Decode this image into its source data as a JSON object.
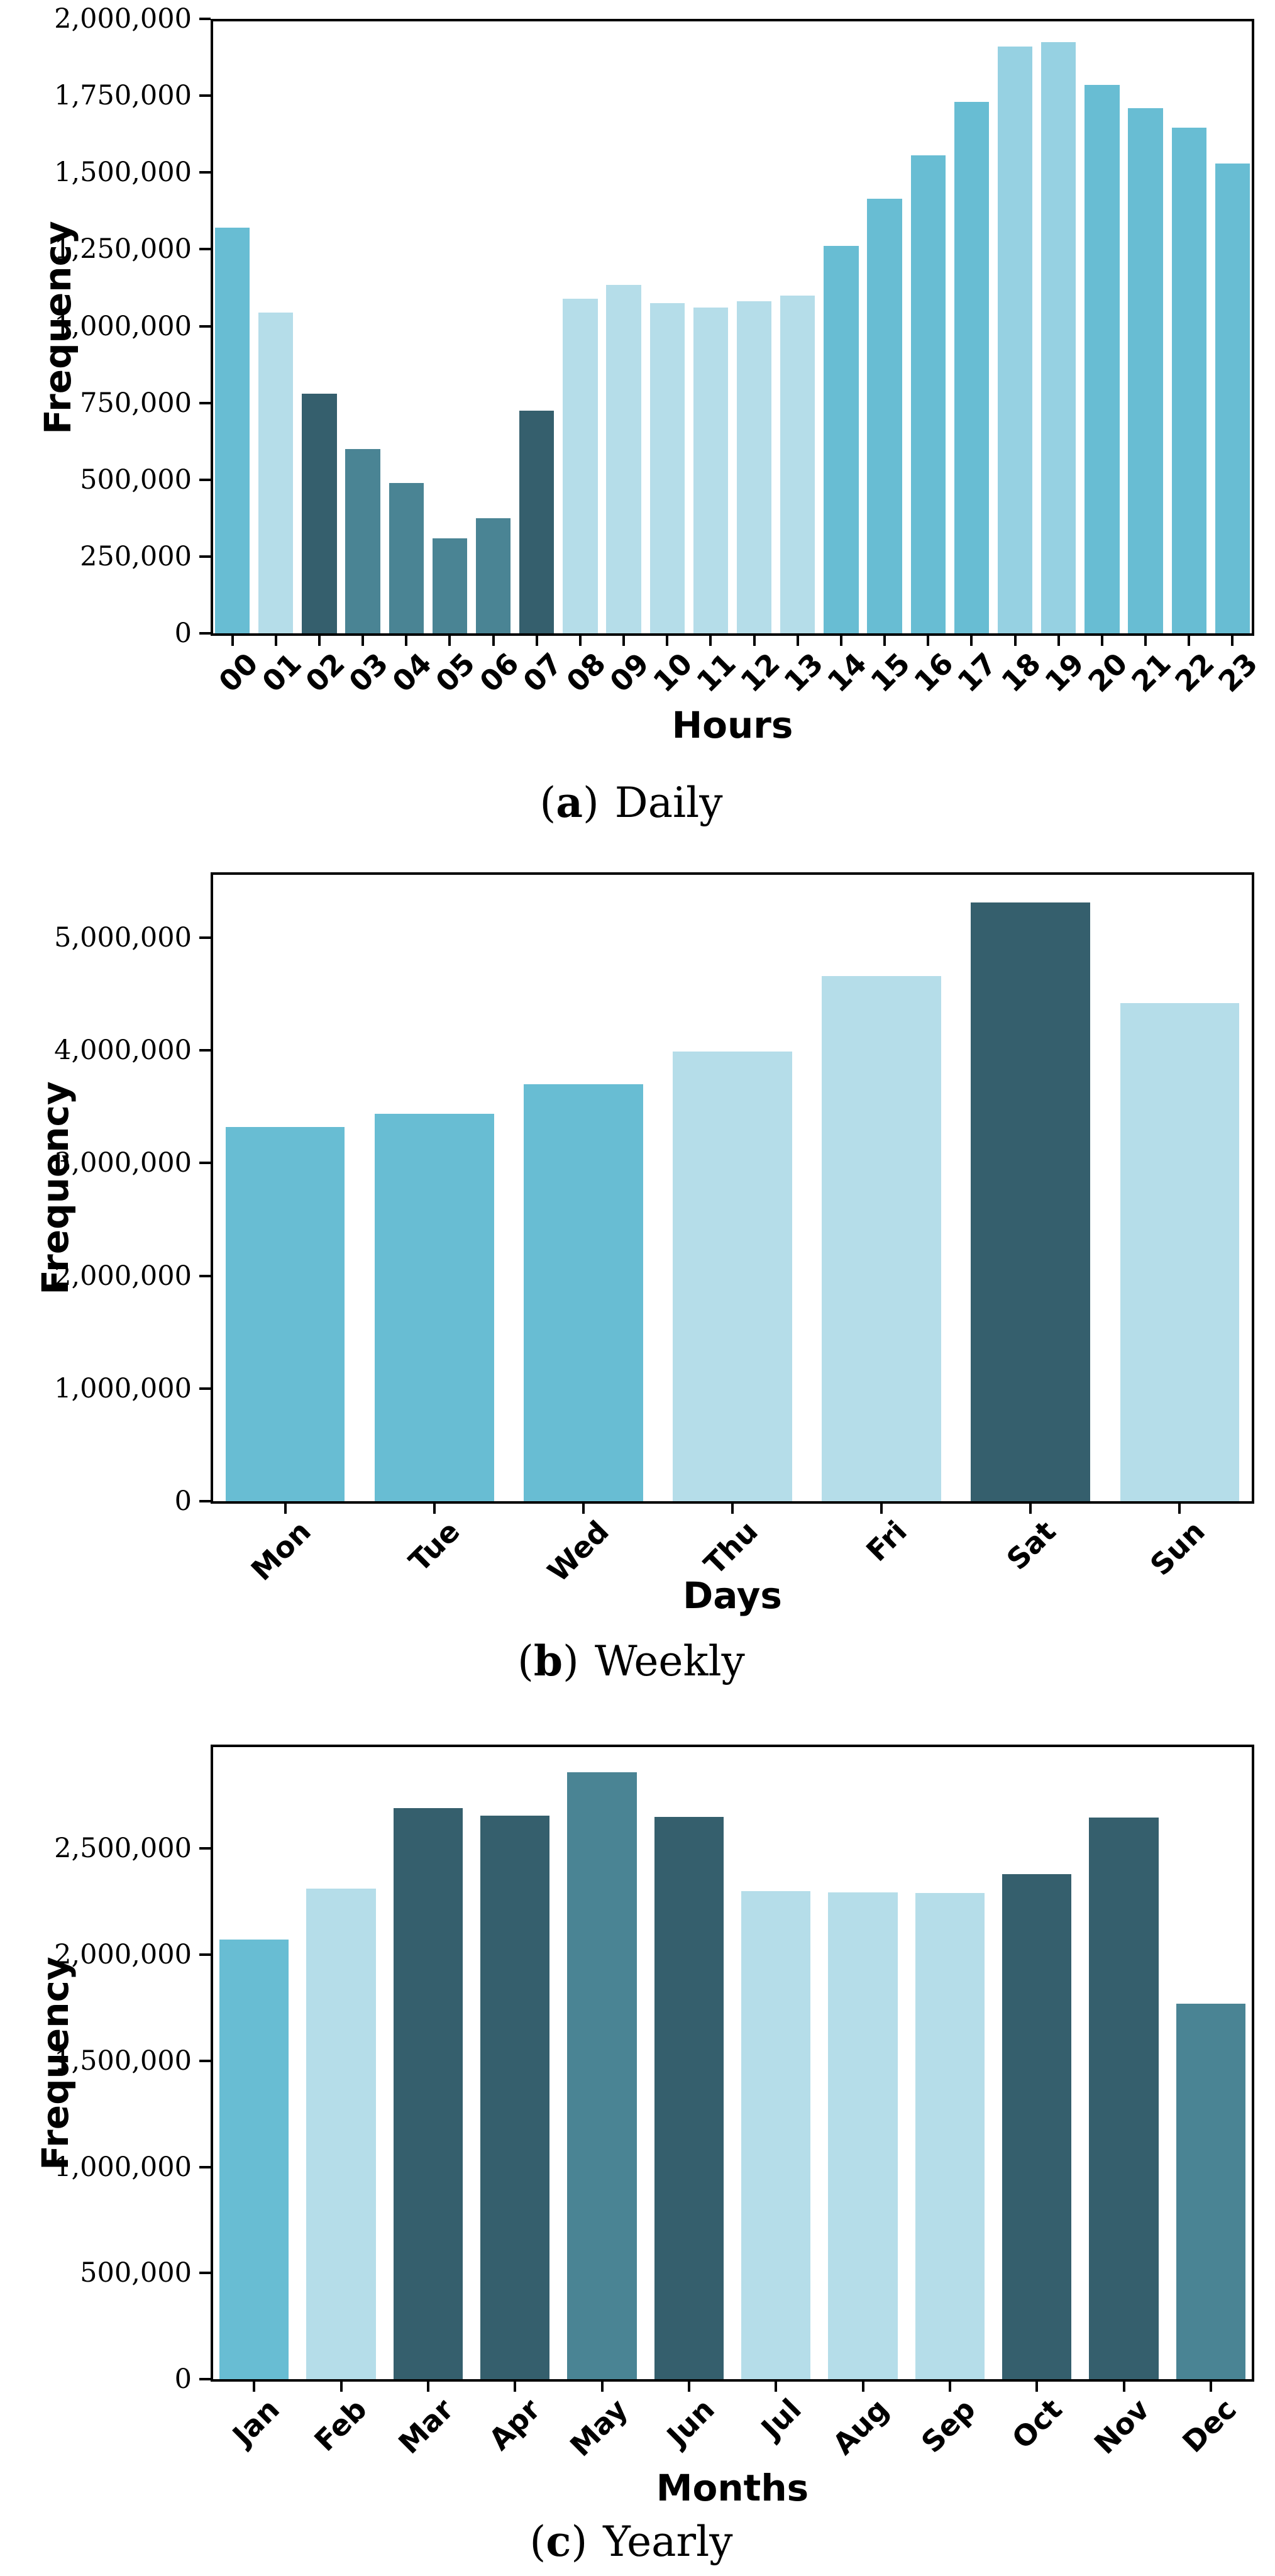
{
  "page": {
    "background": "#ffffff"
  },
  "palette": {
    "medium_teal": "#68bdd3",
    "light_blue": "#b5dde9",
    "pale_mid_blue": "#96d1e2",
    "medium_dark_teal": "#4a8494",
    "dark_slate": "#355f6d",
    "axis_color": "#000000"
  },
  "chart_data": [
    {
      "type": "bar",
      "caption": {
        "open": "(",
        "letter": "a",
        "close": ")",
        "title": "Daily"
      },
      "xlabel": "Hours",
      "ylabel": "Frequency",
      "categories": [
        "00",
        "01",
        "02",
        "03",
        "04",
        "05",
        "06",
        "07",
        "08",
        "09",
        "10",
        "11",
        "12",
        "13",
        "14",
        "15",
        "16",
        "17",
        "18",
        "19",
        "20",
        "21",
        "22",
        "23"
      ],
      "values": [
        1320000,
        1045000,
        780000,
        600000,
        490000,
        310000,
        375000,
        725000,
        1090000,
        1135000,
        1075000,
        1060000,
        1080000,
        1100000,
        1260000,
        1415000,
        1555000,
        1730000,
        1910000,
        1925000,
        1785000,
        1710000,
        1645000,
        1530000
      ],
      "bar_colors": [
        "#68bdd3",
        "#b5dde9",
        "#355f6d",
        "#4a8494",
        "#4a8494",
        "#4a8494",
        "#4a8494",
        "#355f6d",
        "#b5dde9",
        "#b5dde9",
        "#b5dde9",
        "#b5dde9",
        "#b5dde9",
        "#b5dde9",
        "#68bdd3",
        "#68bdd3",
        "#68bdd3",
        "#68bdd3",
        "#96d1e2",
        "#96d1e2",
        "#68bdd3",
        "#68bdd3",
        "#68bdd3",
        "#68bdd3"
      ],
      "ylim": [
        0,
        2000000
      ],
      "grid": false,
      "legend": "none",
      "yticks": {
        "values": [
          0,
          250000,
          500000,
          750000,
          1000000,
          1250000,
          1500000,
          1750000,
          2000000
        ],
        "labels": [
          "0",
          "250,000",
          "500,000",
          "750,000",
          "1,000,000",
          "1,250,000",
          "1,500,000",
          "1,750,000",
          "2,000,000"
        ]
      }
    },
    {
      "type": "bar",
      "caption": {
        "open": "(",
        "letter": "b",
        "close": ")",
        "title": "Weekly"
      },
      "xlabel": "Days",
      "ylabel": "Frequency",
      "categories": [
        "Mon",
        "Tue",
        "Wed",
        "Thu",
        "Fri",
        "Sat",
        "Sun"
      ],
      "values": [
        3320000,
        3440000,
        3700000,
        3990000,
        4660000,
        5310000,
        4420000
      ],
      "bar_colors": [
        "#68bdd3",
        "#68bdd3",
        "#68bdd3",
        "#b5dde9",
        "#b5dde9",
        "#355f6d",
        "#b5dde9"
      ],
      "ylim": [
        0,
        5580000
      ],
      "grid": false,
      "legend": "none",
      "yticks": {
        "values": [
          0,
          1000000,
          2000000,
          3000000,
          4000000,
          5000000
        ],
        "labels": [
          "0",
          "1,000,000",
          "2,000,000",
          "3,000,000",
          "4,000,000",
          "5,000,000"
        ]
      }
    },
    {
      "type": "bar",
      "caption": {
        "open": "(",
        "letter": "c",
        "close": ")",
        "title": "Yearly"
      },
      "xlabel": "Months",
      "ylabel": "Frequency",
      "categories": [
        "Jan",
        "Feb",
        "Mar",
        "Apr",
        "May",
        "Jun",
        "Jul",
        "Aug",
        "Sep",
        "Oct",
        "Nov",
        "Dec"
      ],
      "values": [
        2070000,
        2310000,
        2690000,
        2655000,
        2860000,
        2650000,
        2300000,
        2295000,
        2290000,
        2380000,
        2645000,
        1770000
      ],
      "bar_colors": [
        "#68bdd3",
        "#b5dde9",
        "#355f6d",
        "#355f6d",
        "#4a8494",
        "#355f6d",
        "#b5dde9",
        "#b5dde9",
        "#b5dde9",
        "#355f6d",
        "#355f6d",
        "#4a8494"
      ],
      "ylim": [
        0,
        2990000
      ],
      "grid": false,
      "legend": "none",
      "yticks": {
        "values": [
          0,
          500000,
          1000000,
          1500000,
          2000000,
          2500000
        ],
        "labels": [
          "0",
          "500,000",
          "1,000,000",
          "1,500,000",
          "2,000,000",
          "2,500,000"
        ]
      }
    }
  ]
}
